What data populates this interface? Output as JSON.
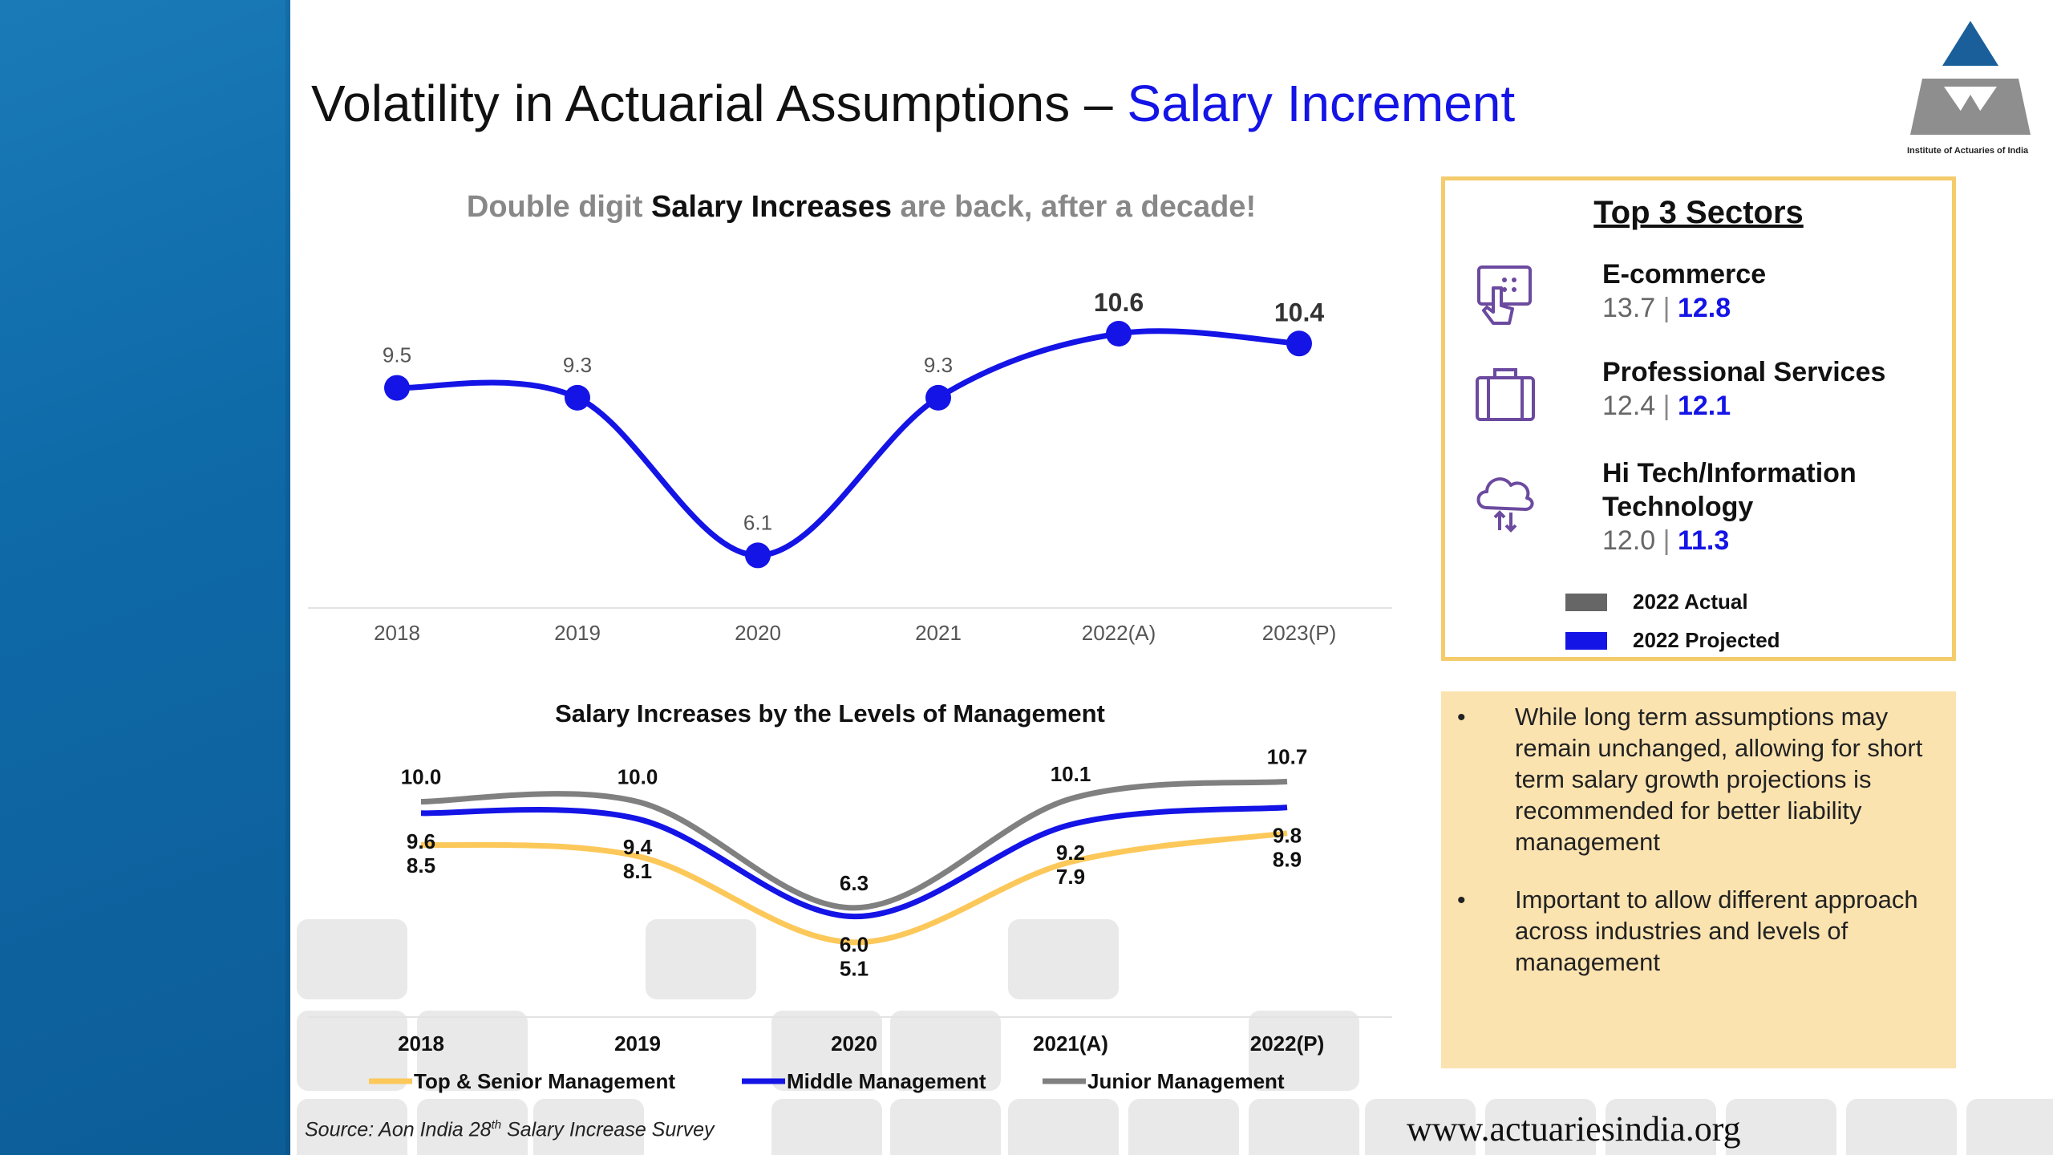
{
  "slide": {
    "title_main": "Volatility in Actuarial Assumptions – ",
    "title_accent": "Salary Increment",
    "logo_caption": "Institute of Actuaries of India",
    "source_prefix": "Source: Aon India 28",
    "source_sup": "th",
    "source_suffix": " Salary Increase Survey",
    "website": "www.actuariesindia.org",
    "colors": {
      "blue": "#1414e6",
      "grey": "#808080",
      "yellow": "#fcc85a",
      "border": "#f4cc6c",
      "note_bg": "#fbe3b0",
      "band": "#1472b3"
    }
  },
  "chart_data": [
    {
      "type": "line",
      "title_parts": [
        "Double digit ",
        "Salary Increases",
        " are back, after a decade!"
      ],
      "categories": [
        "2018",
        "2019",
        "2020",
        "2021",
        "2022(A)",
        "2023(P)"
      ],
      "series": [
        {
          "values": [
            9.5,
            9.3,
            6.1,
            9.3,
            10.6,
            10.4
          ]
        }
      ],
      "ylim": [
        5.0,
        12.0
      ],
      "grid": false,
      "color": "#1414e6"
    },
    {
      "type": "line",
      "title": "Salary Increases by the Levels of Management",
      "categories": [
        "2018",
        "2019",
        "2020",
        "2021(A)",
        "2022(P)"
      ],
      "series": [
        {
          "name": "Top & Senior Management",
          "color": "#fcc85a",
          "values": [
            8.5,
            8.1,
            5.1,
            7.9,
            8.9
          ]
        },
        {
          "name": "Middle Management",
          "color": "#1414e6",
          "values": [
            9.6,
            9.4,
            6.0,
            9.2,
            9.8
          ]
        },
        {
          "name": "Junior Management",
          "color": "#808080",
          "values": [
            10.0,
            10.0,
            6.3,
            10.1,
            10.7
          ]
        }
      ],
      "ylim": [
        3.0,
        12.5
      ],
      "legend": "bottom",
      "grid": false
    }
  ],
  "sectors": {
    "title": "Top 3 Sectors",
    "items": [
      {
        "name": "E-commerce",
        "actual": "13.7",
        "projected": "12.8",
        "icon": "touch-screen-icon"
      },
      {
        "name": "Professional Services",
        "actual": "12.4",
        "projected": "12.1",
        "icon": "briefcase-icon"
      },
      {
        "name": "Hi Tech/Information Technology",
        "name_line1": "Hi Tech/Information",
        "name_line2": "Technology",
        "actual": "12.0",
        "projected": "11.3",
        "icon": "cloud-transfer-icon"
      }
    ],
    "separator": "|",
    "legend": [
      {
        "label": "2022 Actual",
        "color": "#666666"
      },
      {
        "label": "2022 Projected",
        "color": "#1414e6"
      }
    ]
  },
  "notes": [
    "While long term assumptions may remain unchanged, allowing for short term salary growth projections is recommended for better liability management",
    "Important to allow different approach across industries and levels of management"
  ],
  "bullet_char": "•"
}
